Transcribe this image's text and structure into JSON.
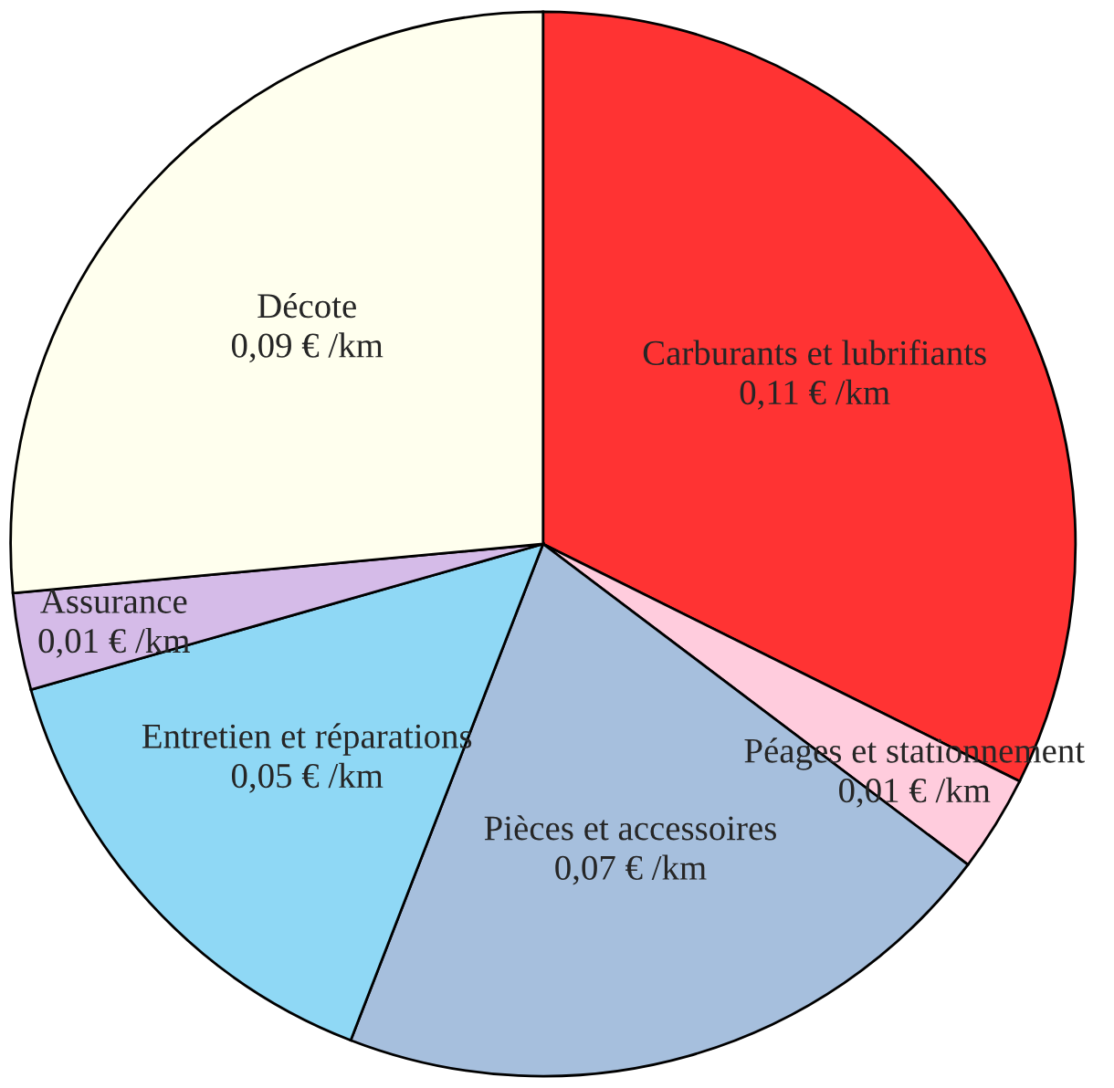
{
  "chart_data": {
    "type": "pie",
    "categories": [
      "Carburants et lubrifiants",
      "Péages et stationnement",
      "Pièces et accessoires",
      "Entretien et réparations",
      "Assurance",
      "Décote"
    ],
    "values": [
      0.11,
      0.01,
      0.07,
      0.05,
      0.01,
      0.09
    ],
    "value_labels": [
      "0,11 € /km",
      "0,01 € /km",
      "0,07 € /km",
      "0,05 € /km",
      "0,01 € /km",
      "0,09 € /km"
    ],
    "colors": [
      "#ff3333",
      "#ffccdd",
      "#a6bfdd",
      "#8fd8f5",
      "#d5bbe8",
      "#ffffee"
    ]
  }
}
